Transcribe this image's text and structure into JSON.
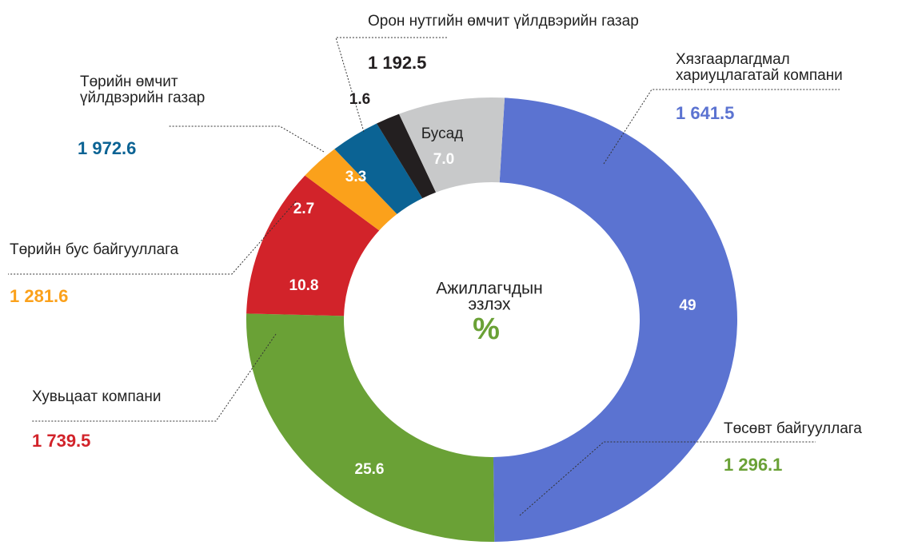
{
  "chart_data": {
    "type": "donut",
    "center_label": [
      "Ажиллагчдын",
      "эзлэх"
    ],
    "center_symbol": "%",
    "categories": [
      [
        "Хязгаарлагдмал",
        "хариуцлагатай компани"
      ],
      [
        "Төсөвт байгууллага"
      ],
      [
        "Хувьцаат компани"
      ],
      [
        "Төрийн бус байгууллага"
      ],
      [
        "Төрийн өмчит",
        "үйлдвэрийн газар"
      ],
      [
        "Орон нутгийн өмчит үйлдвэрийн газар"
      ],
      [
        "Бусад"
      ]
    ],
    "values": [
      49,
      25.6,
      10.8,
      2.7,
      3.3,
      1.6,
      7.0
    ],
    "value_labels": [
      "49",
      "25.6",
      "10.8",
      "2.7",
      "3.3",
      "1.6",
      "7.0"
    ],
    "amount_labels": [
      "1 641.5",
      "1 296.1",
      "1 739.5",
      "1 281.6",
      "1 972.6",
      "1 192.5",
      null
    ],
    "colors": [
      "#5b73d1",
      "#6aa136",
      "#d2232a",
      "#fba11b",
      "#0b6394",
      "#231f20",
      "#c8c9ca"
    ]
  }
}
